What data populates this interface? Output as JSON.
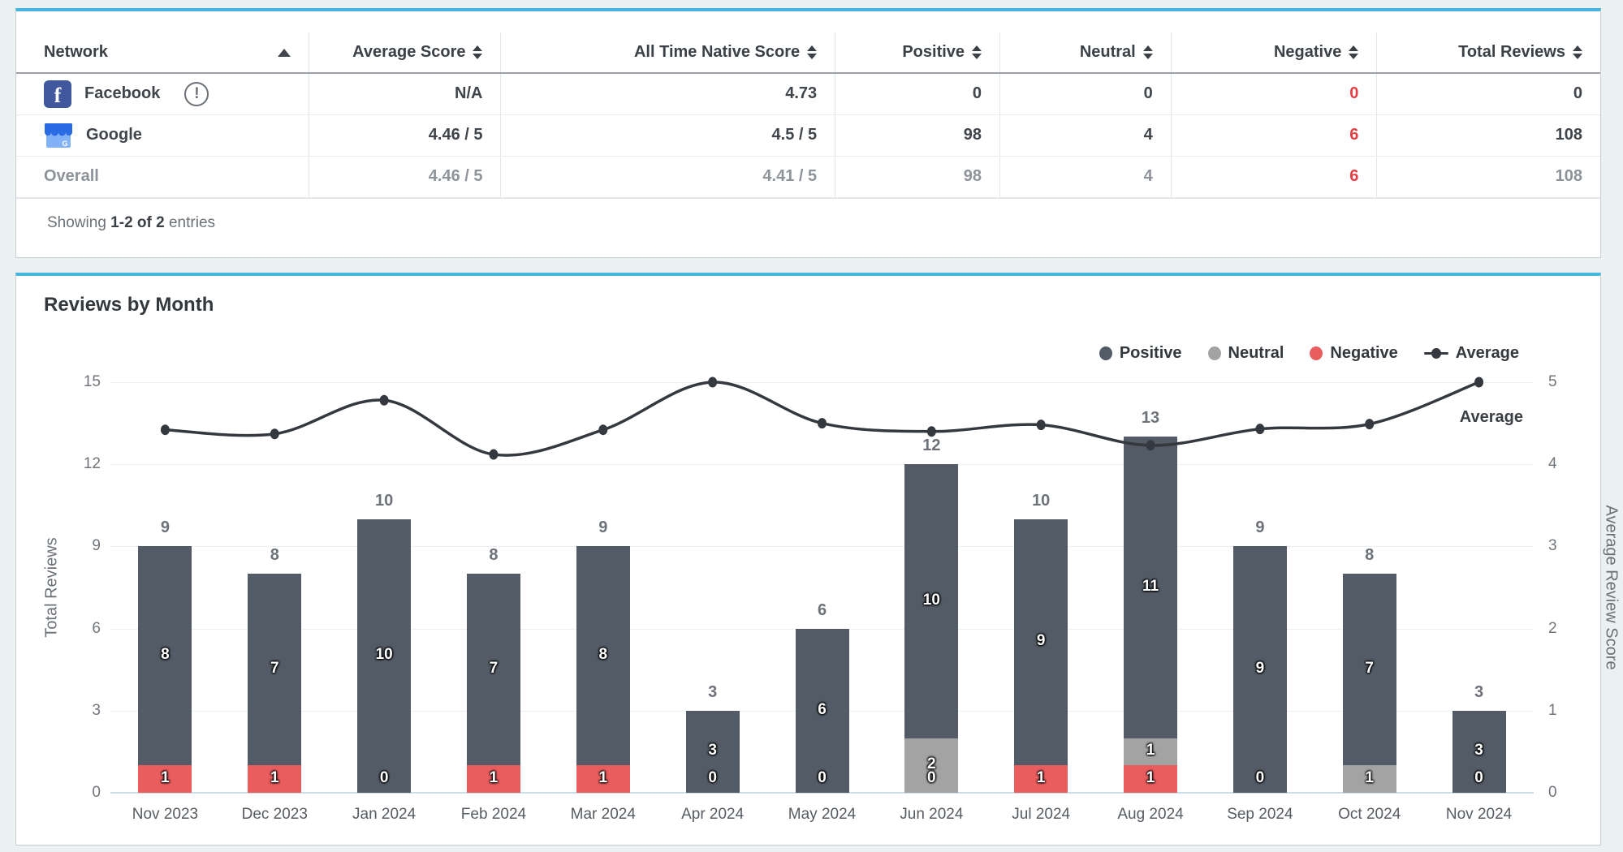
{
  "colors": {
    "accent_top_border": "#46b6e1",
    "positive": "#525b66",
    "neutral": "#a3a3a3",
    "negative": "#ea5d5f",
    "line": "#34393f",
    "negative_text": "#e33e44"
  },
  "table": {
    "columns": [
      {
        "label": "Network",
        "sort": "asc"
      },
      {
        "label": "Average Score",
        "sort": "both"
      },
      {
        "label": "All Time Native Score",
        "sort": "both"
      },
      {
        "label": "Positive",
        "sort": "both"
      },
      {
        "label": "Neutral",
        "sort": "both"
      },
      {
        "label": "Negative",
        "sort": "both"
      },
      {
        "label": "Total Reviews",
        "sort": "both"
      }
    ],
    "rows": [
      {
        "network": "Facebook",
        "icon": "facebook",
        "has_alert": true,
        "alert_glyph": "!",
        "average_score": "N/A",
        "native_score": "4.73",
        "positive": "0",
        "neutral": "0",
        "negative": "0",
        "total": "0"
      },
      {
        "network": "Google",
        "icon": "google-business",
        "average_score": "4.46 / 5",
        "native_score": "4.5 / 5",
        "positive": "98",
        "neutral": "4",
        "negative": "6",
        "total": "108"
      },
      {
        "network": "Overall",
        "average_score": "4.46 / 5",
        "native_score": "4.41 / 5",
        "positive": "98",
        "neutral": "4",
        "negative": "6",
        "total": "108"
      }
    ],
    "footer_prefix": "Showing",
    "footer_range": "1-2 of 2",
    "footer_suffix": "entries",
    "fb_glyph": "f",
    "google_glyph": "G"
  },
  "chart_data": {
    "type": "bar",
    "title": "Reviews by Month",
    "categories": [
      "Nov 2023",
      "Dec 2023",
      "Jan 2024",
      "Feb 2024",
      "Mar 2024",
      "Apr 2024",
      "May 2024",
      "Jun 2024",
      "Jul 2024",
      "Aug 2024",
      "Sep 2024",
      "Oct 2024",
      "Nov 2024"
    ],
    "series": [
      {
        "name": "Positive",
        "color": "#525b66",
        "values": [
          8,
          7,
          10,
          7,
          8,
          3,
          6,
          10,
          9,
          11,
          9,
          7,
          3
        ]
      },
      {
        "name": "Neutral",
        "color": "#a3a3a3",
        "values": [
          0,
          0,
          0,
          0,
          0,
          0,
          0,
          2,
          0,
          1,
          0,
          1,
          0
        ]
      },
      {
        "name": "Negative",
        "color": "#ea5d5f",
        "values": [
          1,
          1,
          0,
          1,
          1,
          0,
          0,
          0,
          1,
          1,
          0,
          0,
          0
        ]
      }
    ],
    "totals": [
      9,
      8,
      10,
      8,
      9,
      3,
      6,
      12,
      10,
      13,
      9,
      8,
      3
    ],
    "zero_negative_label_shown": [
      false,
      false,
      true,
      false,
      false,
      true,
      true,
      true,
      false,
      false,
      true,
      false,
      true
    ],
    "line_series": {
      "name": "Average",
      "color": "#34393f",
      "axis": "right",
      "end_label": "Average",
      "values": [
        4.42,
        4.37,
        4.78,
        4.12,
        4.42,
        5,
        4.5,
        4.4,
        4.48,
        4.23,
        4.43,
        4.49,
        5
      ]
    },
    "left_axis": {
      "label": "Total Reviews",
      "ticks": [
        0,
        3,
        6,
        9,
        12,
        15
      ],
      "max": 15
    },
    "right_axis": {
      "label": "Average Review Score",
      "ticks": [
        0,
        1,
        2,
        3,
        4,
        5
      ],
      "max": 5
    },
    "legend": [
      {
        "label": "Positive",
        "color": "#525b66",
        "marker": "dot"
      },
      {
        "label": "Neutral",
        "color": "#a3a3a3",
        "marker": "dot"
      },
      {
        "label": "Negative",
        "color": "#ea5d5f",
        "marker": "dot"
      },
      {
        "label": "Average",
        "color": "#34393f",
        "marker": "line"
      }
    ],
    "grid": "horizontal",
    "legend_position": "top-right"
  }
}
